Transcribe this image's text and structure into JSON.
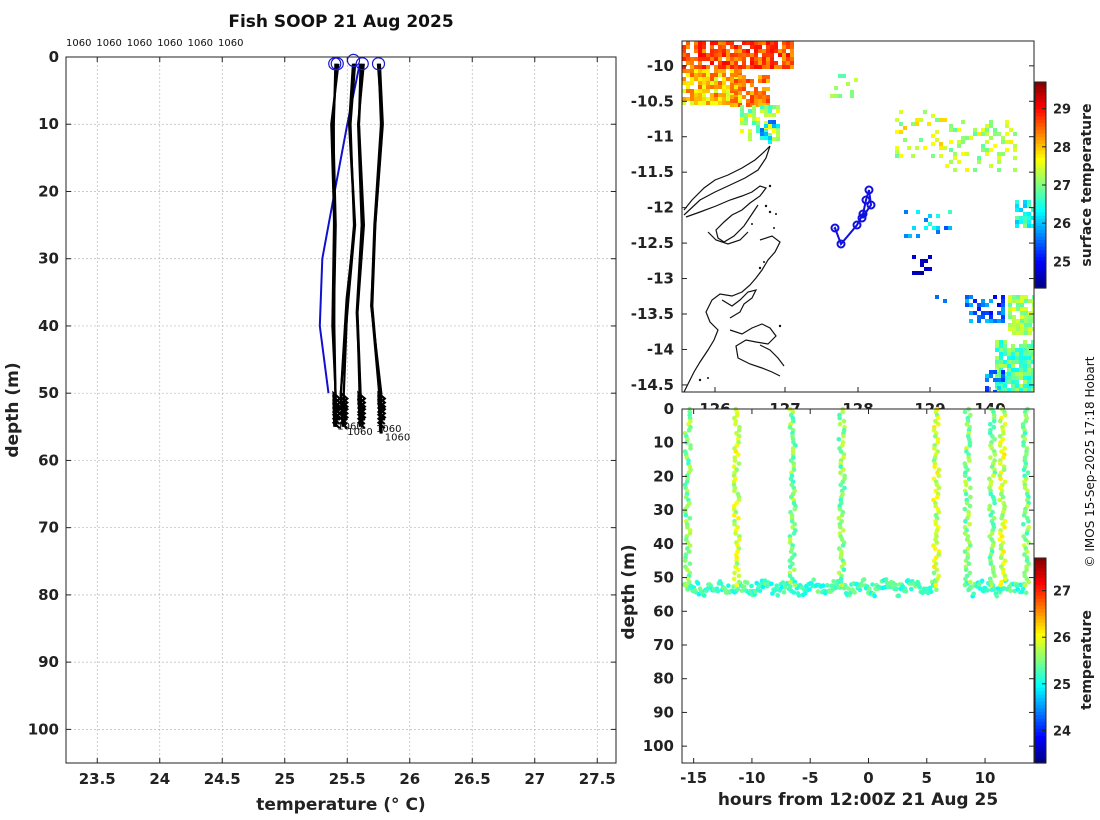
{
  "title": "Fish SOOP 21 Aug 2025",
  "credit": "© IMOS 15-Sep-2025 17:18 Hobart",
  "chart_data": [
    {
      "type": "line",
      "name": "temperature-depth-profiles",
      "xlabel": "temperature (° C)",
      "ylabel": "depth (m)",
      "xlim": [
        23.25,
        27.65
      ],
      "ylim": [
        105,
        0
      ],
      "xticks": [
        "23.5",
        "24",
        "24.5",
        "25",
        "25.5",
        "26",
        "26.5",
        "27",
        "27.5"
      ],
      "yticks": [
        "0",
        "10",
        "20",
        "30",
        "40",
        "50",
        "60",
        "70",
        "80",
        "90",
        "100"
      ],
      "top_labels": [
        "1060",
        "1060",
        "1060",
        "1060",
        "1060",
        "1060"
      ],
      "bottom_labels": [
        "1060",
        "1060",
        "1060",
        "1060"
      ],
      "reference_profile": {
        "name": "climatology",
        "color": "#1010d0",
        "temperature": [
          25.6,
          25.5,
          25.4,
          25.3,
          25.28,
          25.35
        ],
        "depth": [
          1,
          10,
          20,
          30,
          40,
          50
        ]
      },
      "profiles": [
        {
          "temperature": [
            25.42,
            25.38,
            25.4,
            25.39,
            25.4,
            25.41
          ],
          "depth": [
            1,
            10,
            25,
            40,
            50,
            55
          ]
        },
        {
          "temperature": [
            25.55,
            25.52,
            25.55,
            25.5,
            25.46,
            25.47
          ],
          "depth": [
            1,
            10,
            25,
            36,
            50,
            55
          ]
        },
        {
          "temperature": [
            25.62,
            25.6,
            25.62,
            25.58,
            25.6,
            25.61
          ],
          "depth": [
            1,
            10,
            25,
            38,
            50,
            55
          ]
        },
        {
          "temperature": [
            25.75,
            25.78,
            25.72,
            25.7,
            25.76,
            25.77
          ],
          "depth": [
            1,
            10,
            25,
            37,
            50,
            56
          ]
        }
      ],
      "markers": [
        {
          "temperature": 25.42,
          "depth": 1
        },
        {
          "temperature": 25.55,
          "depth": 0.5
        },
        {
          "temperature": 25.62,
          "depth": 1
        },
        {
          "temperature": 25.75,
          "depth": 1
        }
      ]
    },
    {
      "type": "heatmap",
      "name": "surface-temperature-map",
      "xticks": [
        "126",
        "127",
        "128",
        "129",
        "140"
      ],
      "yticks": [
        "-10",
        "-10.5",
        "-11",
        "-11.5",
        "-12",
        "-12.5",
        "-13",
        "-13.5",
        "-14",
        "-14.5"
      ],
      "ylim": [
        -14.6,
        -9.65
      ],
      "colorbar": {
        "label": "surface temperature",
        "range": [
          24.3,
          29.7
        ],
        "ticks": [
          "25",
          "26",
          "27",
          "28",
          "29"
        ]
      },
      "track_color": "#1010e0"
    },
    {
      "type": "scatter",
      "name": "depth-time-section",
      "xlabel": "hours from 12:00Z 21 Aug 25",
      "ylabel": "depth (m)",
      "xlim": [
        -16,
        14.2
      ],
      "ylim": [
        105,
        0
      ],
      "xticks": [
        "-15",
        "-10",
        "-5",
        "0",
        "5",
        "10"
      ],
      "yticks": [
        "0",
        "10",
        "20",
        "30",
        "40",
        "50",
        "60",
        "70",
        "80",
        "90",
        "100"
      ],
      "colorbar": {
        "label": "temperature",
        "range": [
          23.3,
          27.7
        ],
        "ticks": [
          "24",
          "25",
          "26",
          "27"
        ]
      },
      "dive_hours": [
        -15.5,
        -11.3,
        -6.5,
        -2.3,
        5.8,
        8.5,
        10.6,
        11.5,
        13.5
      ],
      "bottom_depth": 53
    }
  ]
}
